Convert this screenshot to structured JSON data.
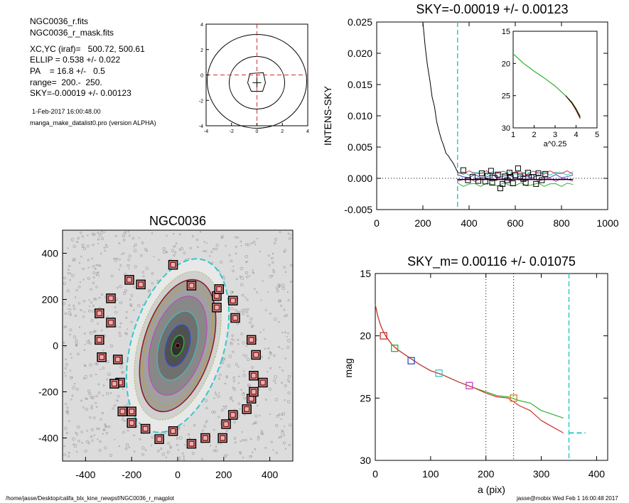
{
  "info": {
    "file1": "NGC0036_r.fits",
    "file2": "NGC0036_r_mask.fits",
    "xcyc": "XC,YC (iraf)=   500.72, 500.61",
    "ellip": "ELLIP = 0.538 +/- 0.022",
    "pa": "PA    = 16.8 +/-   0.5",
    "range": "range=  200.-  250.",
    "sky": "SKY=-0.00019 +/- 0.00123",
    "date": "1-Feb-2017 16:00:48.00",
    "program": "manga_make_datalist0.pro (version ALPHA)"
  },
  "footer": {
    "path": "/home/jasse/Desktop/califa_blx_kine_newpsf/NGC0036_r_magplot",
    "user": "jasse@mobix  Wed Feb  1 16:00:48 2017"
  },
  "colors": {
    "cyan": "#36c8c8",
    "red": "#d03030",
    "green": "#30b030",
    "blue": "#3050c0",
    "magenta": "#c040c0",
    "orange": "#d08020",
    "boxes": "#8b1a1a"
  },
  "chart_data": [
    {
      "id": "contour",
      "type": "contour",
      "title": "",
      "xlim": [
        -4,
        4
      ],
      "ylim": [
        -4,
        4
      ],
      "x_ticks": [
        "-4",
        "-2",
        "0",
        "2",
        "4"
      ],
      "y_ticks": [
        "4",
        "2",
        "0",
        "-2",
        "-4"
      ]
    },
    {
      "id": "sky",
      "type": "line",
      "title": "SKY=-0.00019 +/- 0.00123",
      "xlabel": "",
      "ylabel": "INTENS-SKY",
      "xlim": [
        0,
        1000
      ],
      "ylim": [
        -0.005,
        0.025
      ],
      "x_ticks": [
        "0",
        "200",
        "400",
        "600",
        "800",
        "1000"
      ],
      "y_ticks": [
        "0.025",
        "0.020",
        "0.015",
        "0.010",
        "0.005",
        "0.000",
        "-0.005"
      ],
      "profile": {
        "x": [
          200,
          210,
          220,
          230,
          240,
          250,
          260,
          270,
          280,
          290,
          300,
          310,
          320,
          330,
          340,
          350,
          360
        ],
        "y": [
          0.025,
          0.021,
          0.018,
          0.0157,
          0.013,
          0.0115,
          0.009,
          0.0075,
          0.0062,
          0.0052,
          0.004,
          0.0036,
          0.003,
          0.0025,
          0.0018,
          0.001,
          0.0008
        ]
      },
      "squares": [
        [
          375,
          0.0013
        ],
        [
          395,
          -0.0003
        ],
        [
          415,
          0.0002
        ],
        [
          440,
          -0.0004
        ],
        [
          455,
          0.0008
        ],
        [
          470,
          -0.0005
        ],
        [
          480,
          0.0004
        ],
        [
          495,
          0.0012
        ],
        [
          500,
          -0.0007
        ],
        [
          510,
          0.0001
        ],
        [
          525,
          0.0006
        ],
        [
          535,
          -0.0016
        ],
        [
          545,
          -0.0009
        ],
        [
          555,
          0.0003
        ],
        [
          565,
          -0.0003
        ],
        [
          575,
          0.0009
        ],
        [
          580,
          0.0002
        ],
        [
          590,
          -0.0008
        ],
        [
          600,
          0.0005
        ],
        [
          612,
          0.0016
        ],
        [
          622,
          0.0003
        ],
        [
          635,
          -0.0001
        ],
        [
          645,
          -0.0007
        ],
        [
          655,
          0.0009
        ],
        [
          670,
          0.0002
        ],
        [
          680,
          0.0002
        ],
        [
          690,
          -0.0009
        ],
        [
          700,
          0.0008
        ],
        [
          715,
          -0.0003
        ],
        [
          730,
          0.0007
        ]
      ],
      "sky_line_x": [
        350,
        850
      ],
      "cyan_vline": 350,
      "inset": {
        "type": "line",
        "xlabel": "a^0.25",
        "xlim": [
          1,
          5
        ],
        "ylim": [
          15,
          30
        ],
        "x_ticks": [
          "1",
          "2",
          "3",
          "4",
          "5"
        ],
        "y_ticks": [
          "15",
          "20",
          "25",
          "30"
        ],
        "x": [
          1.0,
          1.5,
          2.0,
          2.5,
          3.0,
          3.5,
          3.8,
          4.0,
          4.2
        ],
        "y": [
          18.5,
          20.0,
          21.2,
          22.3,
          23.5,
          25.0,
          26.0,
          27.0,
          28.2
        ]
      }
    },
    {
      "id": "image",
      "type": "image",
      "title": "NGC0036",
      "xlim": [
        -500,
        500
      ],
      "ylim": [
        -500,
        500
      ],
      "x_ticks": [
        "-400",
        "-200",
        "0",
        "200",
        "400"
      ],
      "y_ticks": [
        "400",
        "200",
        "0",
        "-200",
        "-400"
      ],
      "sky_boxes": [
        [
          -340,
          140
        ],
        [
          -290,
          100
        ],
        [
          -290,
          205
        ],
        [
          -210,
          285
        ],
        [
          -160,
          265
        ],
        [
          -340,
          25
        ],
        [
          -330,
          -50
        ],
        [
          -260,
          -60
        ],
        [
          -250,
          -160
        ],
        [
          -275,
          -165
        ],
        [
          -240,
          -285
        ],
        [
          -200,
          -285
        ],
        [
          -200,
          -335
        ],
        [
          -140,
          -360
        ],
        [
          -80,
          -405
        ],
        [
          -20,
          -370
        ],
        [
          60,
          -425
        ],
        [
          120,
          -400
        ],
        [
          195,
          -400
        ],
        [
          210,
          -340
        ],
        [
          240,
          -300
        ],
        [
          300,
          -275
        ],
        [
          320,
          -230
        ],
        [
          330,
          -200
        ],
        [
          330,
          -130
        ],
        [
          370,
          -160
        ],
        [
          320,
          25
        ],
        [
          250,
          120
        ],
        [
          240,
          195
        ],
        [
          170,
          165
        ],
        [
          170,
          215
        ],
        [
          180,
          245
        ],
        [
          60,
          260
        ],
        [
          -20,
          350
        ],
        [
          340,
          -40
        ]
      ]
    },
    {
      "id": "mag",
      "type": "line",
      "title": "SKY_m=  0.00116 +/- 0.01075",
      "xlabel": "a (pix)",
      "ylabel": "mag",
      "xlim": [
        0,
        420
      ],
      "ylim": [
        15,
        30
      ],
      "x_ticks": [
        "0",
        "100",
        "200",
        "300",
        "400"
      ],
      "y_ticks": [
        "15",
        "20",
        "25",
        "30"
      ],
      "vlines_dotted": [
        200,
        250
      ],
      "vline_cyan": 350,
      "sky_mag": 27.8,
      "series": [
        {
          "color": "green",
          "x": [
            0,
            5,
            10,
            15,
            20,
            30,
            40,
            60,
            80,
            100,
            120,
            150,
            180,
            200,
            220,
            240,
            260,
            280,
            300,
            320,
            340
          ],
          "y": [
            17.5,
            18.5,
            19.2,
            19.7,
            20.1,
            20.7,
            21.1,
            21.7,
            22.3,
            22.8,
            23.1,
            23.7,
            24.2,
            24.5,
            24.8,
            24.9,
            25.2,
            25.4,
            26.0,
            26.3,
            26.6
          ]
        },
        {
          "color": "red",
          "x": [
            0,
            5,
            10,
            15,
            20,
            30,
            40,
            60,
            80,
            100,
            120,
            150,
            180,
            200,
            220,
            240,
            260,
            280,
            300,
            320,
            340
          ],
          "y": [
            17.5,
            18.5,
            19.2,
            19.7,
            20.1,
            20.7,
            21.1,
            21.7,
            22.3,
            22.8,
            23.1,
            23.7,
            24.2,
            24.6,
            24.9,
            25.0,
            25.6,
            26.0,
            26.8,
            27.3,
            27.8
          ]
        },
        {
          "color": "black",
          "x": [
            0,
            5,
            10,
            15,
            20,
            30,
            40,
            60,
            80,
            100,
            120,
            150,
            180,
            200,
            220,
            240,
            260,
            280,
            300,
            320,
            340
          ],
          "y": [
            17.5,
            18.5,
            19.2,
            19.7,
            20.1,
            20.7,
            21.1,
            21.7,
            22.3,
            22.8,
            23.1,
            23.7,
            24.2,
            24.5,
            24.8,
            24.9,
            25.4,
            25.7,
            26.4,
            26.9,
            27.3
          ]
        }
      ],
      "markers": [
        {
          "color": "red",
          "x": 15,
          "y": 20.0
        },
        {
          "color": "green",
          "x": 35,
          "y": 21.0
        },
        {
          "color": "blue",
          "x": 65,
          "y": 22.0
        },
        {
          "color": "cyan",
          "x": 115,
          "y": 23.0
        },
        {
          "color": "magenta",
          "x": 170,
          "y": 24.0
        },
        {
          "color": "orange",
          "x": 250,
          "y": 25.0
        }
      ]
    }
  ]
}
